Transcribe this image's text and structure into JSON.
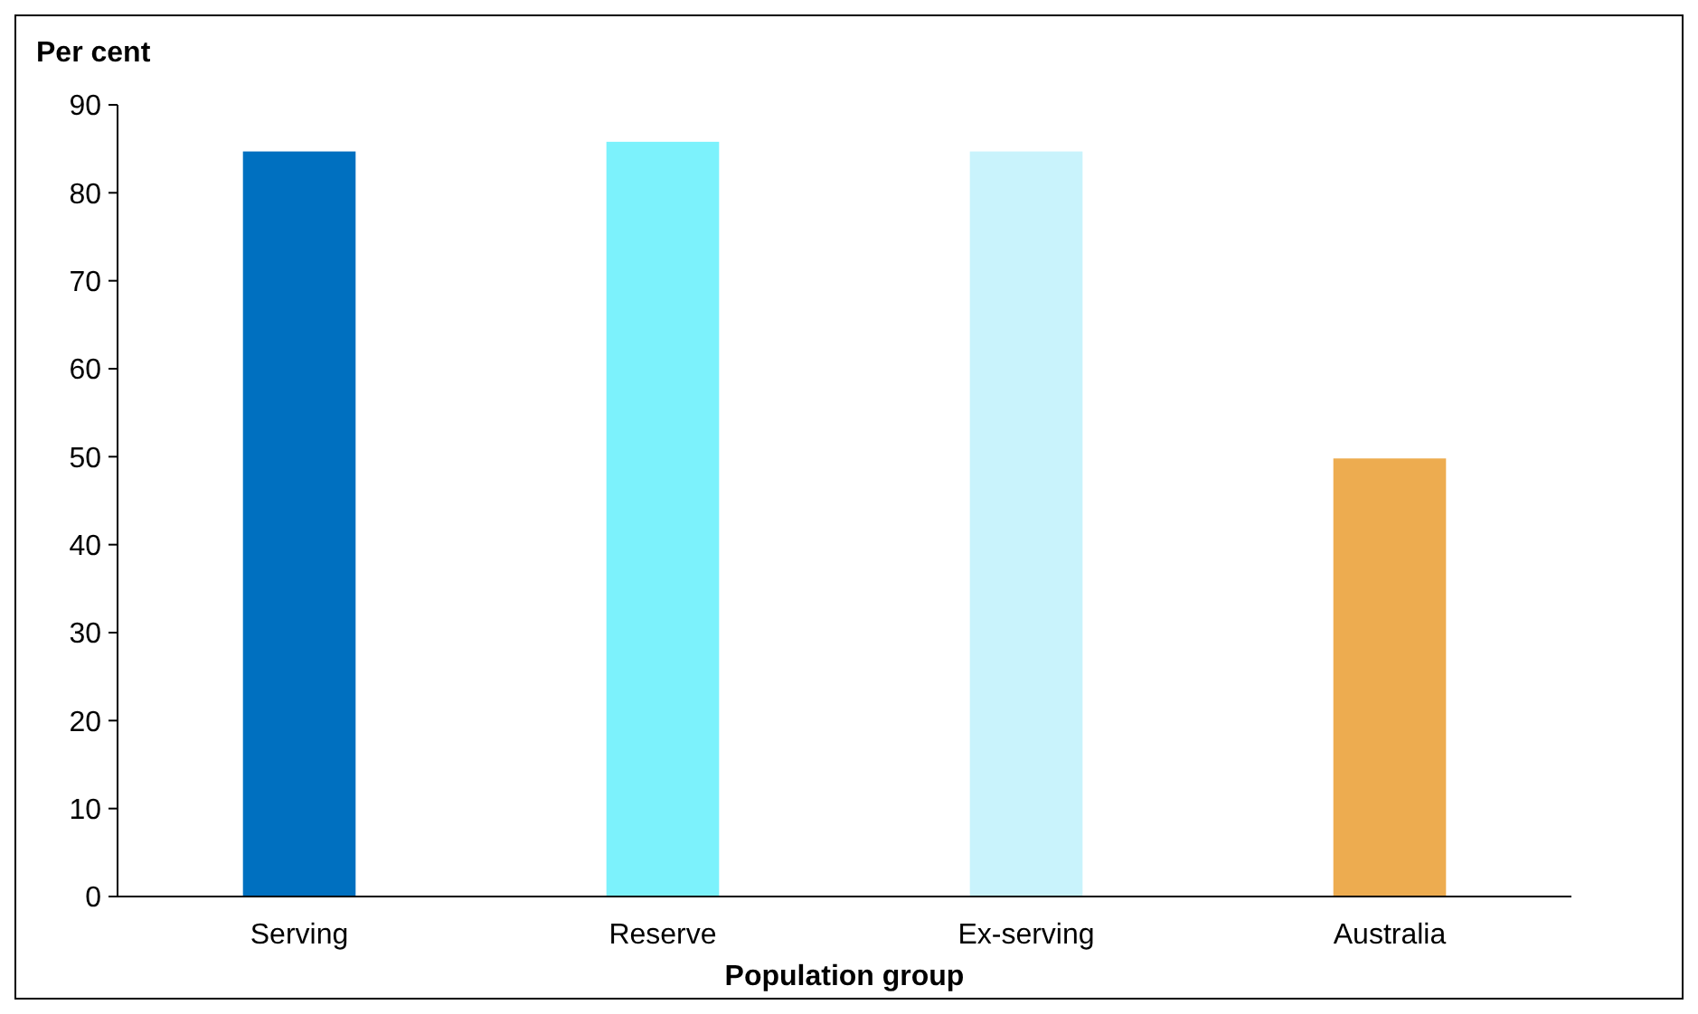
{
  "chart_data": {
    "type": "bar",
    "ylabel": "Per cent",
    "xlabel": "Population group",
    "categories": [
      "Serving",
      "Reserve",
      "Ex-serving",
      "Australia"
    ],
    "values": [
      84.7,
      85.8,
      84.7,
      49.8
    ],
    "colors": [
      "#0070c0",
      "#7cf2fc",
      "#c9f3fc",
      "#edac50"
    ],
    "ylim": [
      0,
      90
    ],
    "yticks": [
      0,
      10,
      20,
      30,
      40,
      50,
      60,
      70,
      80,
      90
    ],
    "grid": false
  }
}
